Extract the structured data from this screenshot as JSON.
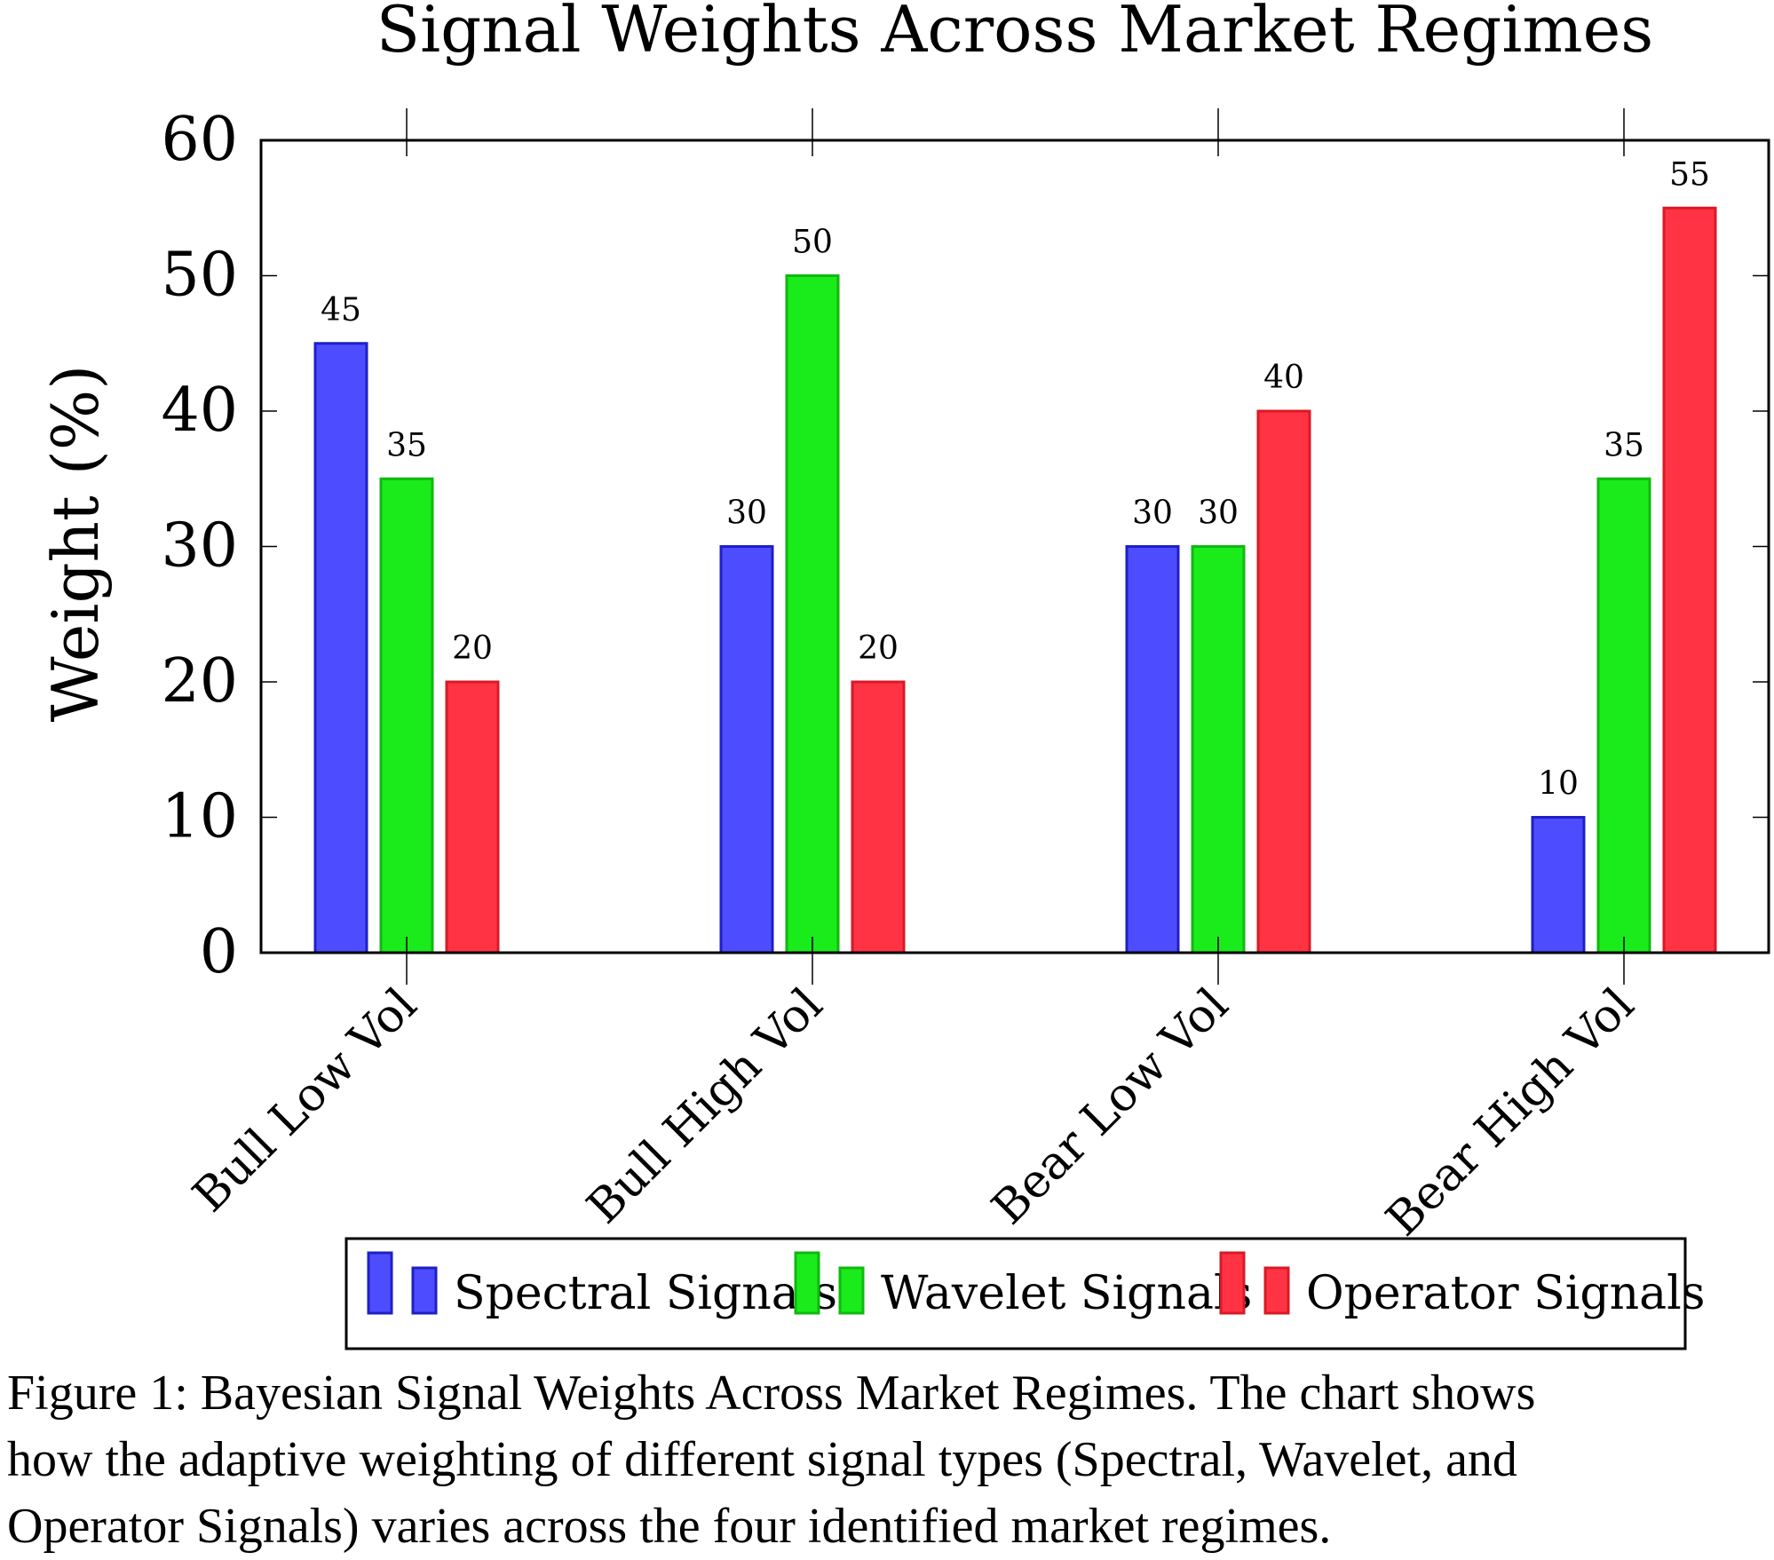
{
  "chart_data": {
    "type": "bar",
    "title": "Signal Weights Across Market Regimes",
    "xlabel": "",
    "ylabel": "Weight (%)",
    "ylim": [
      0,
      60
    ],
    "yticks": [
      "0",
      "10",
      "20",
      "30",
      "40",
      "50",
      "60"
    ],
    "categories": [
      "Bull Low Vol",
      "Bull High Vol",
      "Bear Low Vol",
      "Bear High Vol"
    ],
    "series": [
      {
        "name": "Spectral Signals",
        "values": [
          45,
          30,
          30,
          10
        ],
        "color": "#4d4dff",
        "stroke": "#1f1fc8"
      },
      {
        "name": "Wavelet Signals",
        "values": [
          35,
          50,
          30,
          35
        ],
        "color": "#1aeb1a",
        "stroke": "#10b810"
      },
      {
        "name": "Operator Signals",
        "values": [
          20,
          20,
          40,
          55
        ],
        "color": "#ff3344",
        "stroke": "#d91a24"
      }
    ],
    "data_labels": true,
    "grid": false,
    "legend_position": "bottom"
  },
  "caption": {
    "lines": [
      "Figure 1: Bayesian Signal Weights Across Market Regimes. The chart shows",
      "how the adaptive weighting of different signal types (Spectral, Wavelet, and",
      "Operator Signals) varies across the four identified market regimes."
    ]
  }
}
